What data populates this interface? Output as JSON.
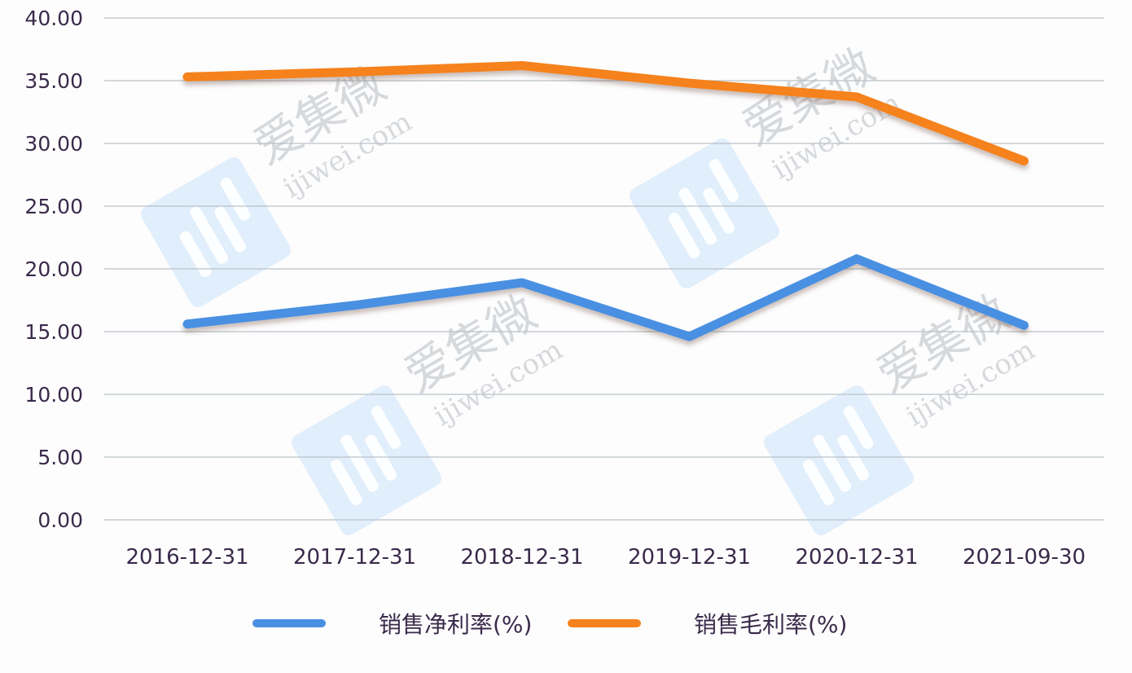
{
  "chart_data": {
    "type": "line",
    "title": "",
    "xlabel": "",
    "ylabel": "",
    "categories": [
      "2016-12-31",
      "2017-12-31",
      "2018-12-31",
      "2019-12-31",
      "2020-12-31",
      "2021-09-30"
    ],
    "series": [
      {
        "name": "销售净利率(%)",
        "color": "#4a90e2",
        "values": [
          15.6,
          17.1,
          18.9,
          14.6,
          20.8,
          15.5
        ]
      },
      {
        "name": "销售毛利率(%)",
        "color": "#f5821f",
        "values": [
          35.3,
          35.7,
          36.2,
          34.8,
          33.7,
          28.6
        ]
      }
    ],
    "ylim": [
      0,
      40
    ],
    "yticks": [
      "0.00",
      "5.00",
      "10.00",
      "15.00",
      "20.00",
      "25.00",
      "30.00",
      "35.00",
      "40.00"
    ],
    "grid": true,
    "legend_position": "bottom"
  },
  "legend": {
    "items": [
      {
        "label": "销售净利率(%)",
        "color": "#4a90e2"
      },
      {
        "label": "销售毛利率(%)",
        "color": "#f5821f"
      }
    ]
  },
  "watermark": {
    "brand": "爱集微",
    "domain": "ijiwei.com"
  }
}
